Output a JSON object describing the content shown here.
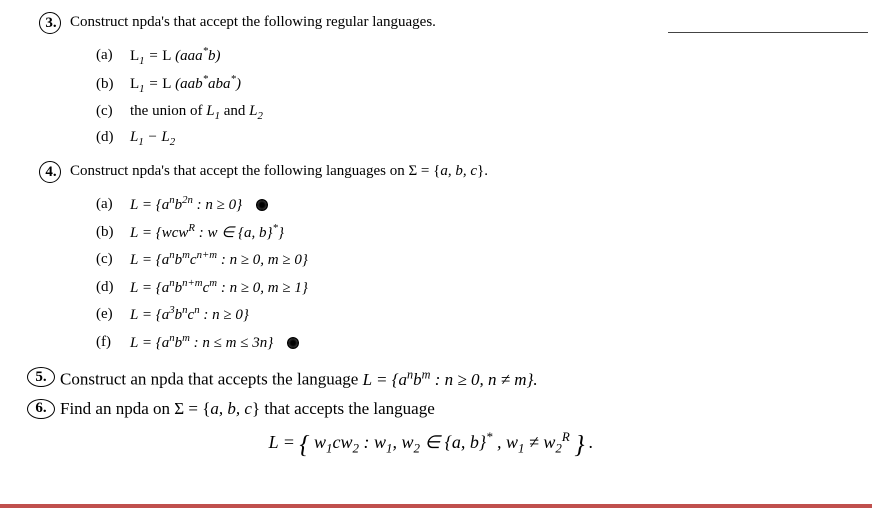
{
  "page": {
    "background_color": "#ffffff",
    "text_color": "#000000",
    "accent_bar_color": "#c0504d",
    "base_fontsize": 15,
    "large_fontsize": 17,
    "font_family": "Times New Roman"
  },
  "problem3": {
    "number": "3.",
    "text": "Construct npda's that accept the following regular languages.",
    "items": {
      "a": {
        "label": "(a)",
        "expr": "L₁ = L (aaa*b)"
      },
      "b": {
        "label": "(b)",
        "expr": "L₁ = L (aab*aba*)"
      },
      "c": {
        "label": "(c)",
        "expr": "the union of L₁ and L₂"
      },
      "d": {
        "label": "(d)",
        "expr": "L₁ − L₂"
      }
    }
  },
  "problem4": {
    "number": "4.",
    "text": "Construct npda's that accept the following languages on Σ = {a, b, c}.",
    "items": {
      "a": {
        "label": "(a)",
        "expr": "L = {aⁿb²ⁿ : n ≥ 0}",
        "starred": true
      },
      "b": {
        "label": "(b)",
        "expr": "L = {wcwᴿ : w ∈ {a, b}*}"
      },
      "c": {
        "label": "(c)",
        "expr": "L = {aⁿbᵐcⁿ⁺ᵐ : n ≥ 0, m ≥ 0}"
      },
      "d": {
        "label": "(d)",
        "expr": "L = {aⁿbⁿ⁺ᵐcᵐ : n ≥ 0, m ≥ 1}"
      },
      "e": {
        "label": "(e)",
        "expr": "L = {a³bⁿcⁿ : n ≥ 0}"
      },
      "f": {
        "label": "(f)",
        "expr": "L = {aⁿbᵐ : n ≤ m ≤ 3n}",
        "starred": true
      }
    }
  },
  "problem5": {
    "number": "5.",
    "text_prefix": "Construct an npda that accepts the language ",
    "expr": "L = {aⁿbᵐ : n ≥ 0, n ≠ m}."
  },
  "problem6": {
    "number": "6.",
    "text": "Find an npda on Σ = {a, b, c} that accepts the language",
    "display_expr": "L = { w₁cw₂ : w₁, w₂ ∈ {a, b}* , w₁ ≠ w₂ᴿ } ."
  }
}
